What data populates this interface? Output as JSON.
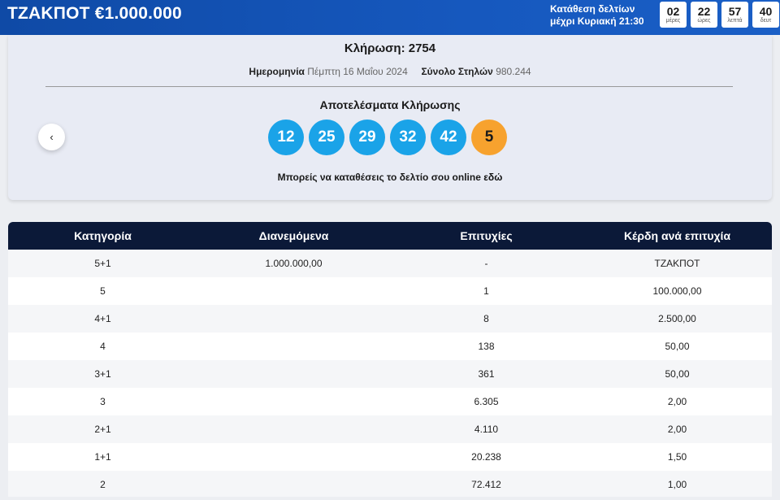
{
  "header": {
    "jackpot": "ΤΖΑΚΠΟΤ €1.000.000",
    "deadline_line1": "Κατάθεση δελτίων",
    "deadline_line2": "μέχρι Κυριακή 21:30",
    "countdown": [
      {
        "value": "02",
        "label": "μέρες"
      },
      {
        "value": "22",
        "label": "ώρες"
      },
      {
        "value": "57",
        "label": "λεπτά"
      },
      {
        "value": "40",
        "label": "δευτ"
      }
    ]
  },
  "draw": {
    "title": "Κλήρωση: 2754",
    "date_label": "Ημερομηνία",
    "date_value": "Πέμπτη 16 Μαΐου 2024",
    "columns_label": "Σύνολο Στηλών",
    "columns_value": "980.244",
    "results_title": "Αποτελέσματα Κλήρωσης",
    "numbers": [
      "12",
      "25",
      "29",
      "32",
      "42"
    ],
    "bonus": "5",
    "prev_icon": "‹",
    "online_text": "Μπορείς να καταθέσεις το δελτίο σου online ",
    "online_link": "εδώ"
  },
  "colors": {
    "ball": "#1aa3e8",
    "bonus_ball": "#f7a22e",
    "header_bar": "#1658be",
    "table_header": "#0b1938"
  },
  "table": {
    "headers": [
      "Κατηγορία",
      "Διανεμόμενα",
      "Επιτυχίες",
      "Κέρδη ανά επιτυχία"
    ],
    "rows": [
      [
        "5+1",
        "1.000.000,00",
        "-",
        "ΤΖΑΚΠΟΤ"
      ],
      [
        "5",
        "",
        "1",
        "100.000,00"
      ],
      [
        "4+1",
        "",
        "8",
        "2.500,00"
      ],
      [
        "4",
        "",
        "138",
        "50,00"
      ],
      [
        "3+1",
        "",
        "361",
        "50,00"
      ],
      [
        "3",
        "",
        "6.305",
        "2,00"
      ],
      [
        "2+1",
        "",
        "4.110",
        "2,00"
      ],
      [
        "1+1",
        "",
        "20.238",
        "1,50"
      ],
      [
        "2",
        "",
        "72.412",
        "1,00"
      ]
    ]
  }
}
